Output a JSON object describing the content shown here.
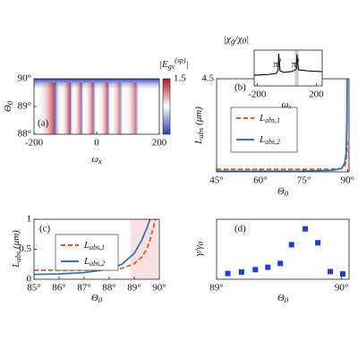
{
  "chart_data": [
    {
      "type": "heatmap",
      "panel_label": "(a)",
      "xlabel": [
        {
          "t": "ω"
        },
        {
          "sub": "x"
        }
      ],
      "ylabel": [
        {
          "t": "Θ"
        },
        {
          "sub": "0"
        }
      ],
      "xlim": [
        -200,
        200
      ],
      "xticks": [
        -200,
        0,
        200
      ],
      "ylim": [
        88,
        90
      ],
      "yticks": [
        {
          "value": 88,
          "label": "88°"
        },
        {
          "value": 89,
          "label": "89°"
        },
        {
          "value": 90,
          "label": "90°"
        }
      ],
      "colorbar": {
        "lim": [
          0,
          1.5
        ],
        "ticks": [
          1.5
        ],
        "label": [
          {
            "t": "|E"
          },
          {
            "sub": "gv"
          },
          {
            "sup": "(sp)"
          },
          {
            "t": "|"
          }
        ]
      }
    },
    {
      "type": "line",
      "panel_label": "(b)",
      "xlabel": [
        {
          "t": "Θ"
        },
        {
          "sub": "0"
        }
      ],
      "ylabel": [
        {
          "t": "L"
        },
        {
          "sub": "abs"
        },
        {
          "t": " (μm)"
        }
      ],
      "xlim": [
        45,
        90.5
      ],
      "xticks": [
        {
          "value": 45,
          "label": "45°"
        },
        {
          "value": 60,
          "label": "60°"
        },
        {
          "value": 75,
          "label": "75°"
        },
        {
          "value": 90,
          "label": "90°"
        }
      ],
      "ylim": [
        0,
        4.5
      ],
      "yticks": [
        4.5
      ],
      "shade": [
        89,
        90.5
      ],
      "x": [
        45,
        60,
        75,
        85,
        88,
        89,
        89.5,
        89.8,
        89.9
      ],
      "series": [
        {
          "name": [
            {
              "t": "L"
            },
            {
              "sub": "abs,1"
            }
          ],
          "color": "#e8541e",
          "dash": true,
          "values": [
            0.12,
            0.12,
            0.12,
            0.13,
            0.16,
            0.26,
            0.5,
            1.0,
            1.6
          ]
        },
        {
          "name": [
            {
              "t": "L"
            },
            {
              "sub": "abs,2"
            }
          ],
          "color": "#2a7ab9",
          "dash": false,
          "values": [
            0.03,
            0.03,
            0.04,
            0.08,
            0.17,
            0.43,
            0.85,
            2.4,
            4.5
          ]
        }
      ],
      "inset": {
        "type": "line",
        "title": [
          {
            "t": "|χ"
          },
          {
            "sub": "g"
          },
          {
            "t": "/χ"
          },
          {
            "sub": "0"
          },
          {
            "t": "|"
          }
        ],
        "xlabel": [
          {
            "t": "ω"
          },
          {
            "sub": "x"
          }
        ],
        "xlim": [
          -220,
          240
        ],
        "xticks": [
          -200,
          200
        ],
        "ylim": [
          0,
          1
        ],
        "shade": [
          55,
          80
        ],
        "x": [
          -220,
          -120,
          -70,
          -57,
          -54,
          -45,
          -20,
          30,
          60,
          66,
          69,
          80,
          140,
          240
        ],
        "values": [
          0.3,
          0.32,
          0.35,
          0.45,
          0.9,
          0.42,
          0.38,
          0.4,
          0.45,
          0.5,
          0.88,
          0.45,
          0.42,
          0.4
        ],
        "annotations": [
          {
            "x": -55,
            "text": [
              {
                "t": "π"
              },
              {
                "sup": "0"
              }
            ]
          },
          {
            "x": 68,
            "text": [
              {
                "t": "π"
              },
              {
                "sup": "0"
              }
            ]
          }
        ]
      }
    },
    {
      "type": "line",
      "panel_label": "(c)",
      "xlabel": [
        {
          "t": "Θ"
        },
        {
          "sub": "0"
        }
      ],
      "ylabel": [
        {
          "t": "L"
        },
        {
          "sub": "abs"
        },
        {
          "t": " (μm)"
        }
      ],
      "xlim": [
        85,
        90
      ],
      "xticks": [
        {
          "value": 85,
          "label": "85°"
        },
        {
          "value": 86,
          "label": "86°"
        },
        {
          "value": 87,
          "label": "87°"
        },
        {
          "value": 88,
          "label": "88°"
        },
        {
          "value": 89,
          "label": "89°"
        },
        {
          "value": 90,
          "label": "90°"
        }
      ],
      "ylim": [
        0,
        1
      ],
      "yticks": [
        0,
        0.5,
        1
      ],
      "shade": [
        88.85,
        89.95
      ],
      "x": [
        85,
        86,
        87,
        88,
        88.5,
        89,
        89.3,
        89.5,
        89.63,
        89.85
      ],
      "series": [
        {
          "name": [
            {
              "t": "L"
            },
            {
              "sub": "abs,1"
            }
          ],
          "color": "#e8541e",
          "dash": true,
          "values": [
            0.15,
            0.15,
            0.15,
            0.16,
            0.18,
            0.26,
            0.37,
            0.5,
            0.65,
            1.0
          ]
        },
        {
          "name": [
            {
              "t": "L"
            },
            {
              "sub": "abs,2"
            }
          ],
          "color": "#2a7ab9",
          "dash": false,
          "values": [
            0.08,
            0.09,
            0.11,
            0.17,
            0.25,
            0.43,
            0.65,
            0.85,
            1.0,
            null
          ]
        }
      ]
    },
    {
      "type": "scatter",
      "panel_label": "(d)",
      "xlabel": [
        {
          "t": "Θ"
        },
        {
          "sub": "0"
        }
      ],
      "ylabel": [
        {
          "t": "γ/γ"
        },
        {
          "sub": "0"
        }
      ],
      "xlim": [
        89,
        90.06
      ],
      "xticks": [
        {
          "value": 89,
          "label": "89°"
        },
        {
          "value": 90,
          "label": "90°"
        }
      ],
      "ylim": [
        0,
        12.5
      ],
      "color": "#1a3fe0",
      "x": [
        89.09,
        89.2,
        89.31,
        89.41,
        89.51,
        89.6,
        89.71,
        89.81,
        89.91,
        90.01
      ],
      "values": [
        1.2,
        1.5,
        2.0,
        2.5,
        3.3,
        7.2,
        10.5,
        7.6,
        1.6,
        1.1
      ]
    }
  ]
}
